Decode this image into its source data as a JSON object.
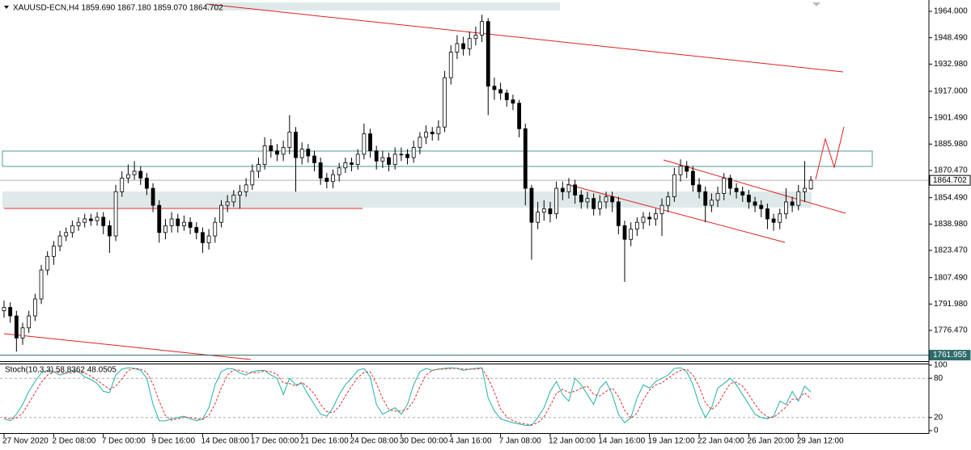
{
  "chart_data": [
    {
      "type": "candlestick",
      "title": "XAUUSD-ECN,H4 1859.690 1867.180 1859.070 1864.702",
      "categories": [
        "27 Nov 2020",
        null,
        null,
        null,
        null,
        null,
        null,
        null,
        "2 Dec 08:00",
        null,
        null,
        null,
        null,
        null,
        null,
        null,
        "7 Dec 00:00",
        null,
        null,
        null,
        null,
        null,
        null,
        null,
        "9 Dec 16:00",
        null,
        null,
        null,
        null,
        null,
        null,
        null,
        "14 Dec 08:00",
        null,
        null,
        null,
        null,
        null,
        null,
        null,
        "17 Dec 00:00",
        null,
        null,
        null,
        null,
        null,
        null,
        null,
        "21 Dec 16:00",
        null,
        null,
        null,
        null,
        null,
        null,
        null,
        "24 Dec 08:00",
        null,
        null,
        null,
        null,
        null,
        null,
        null,
        "30 Dec 00:00",
        null,
        null,
        null,
        null,
        null,
        null,
        null,
        "4 Jan 16:00",
        null,
        null,
        null,
        null,
        null,
        null,
        null,
        "7 Jan 08:00",
        null,
        null,
        null,
        null,
        null,
        null,
        null,
        "12 Jan 00:00",
        null,
        null,
        null,
        null,
        null,
        null,
        null,
        "14 Jan 16:00",
        null,
        null,
        null,
        null,
        null,
        null,
        null,
        "19 Jan 12:00",
        null,
        null,
        null,
        null,
        null,
        null,
        null,
        "22 Jan 04:00",
        null,
        null,
        null,
        null,
        null,
        null,
        null,
        "26 Jan 20:00",
        null,
        null,
        null,
        null,
        null,
        null,
        null,
        "29 Jan 12:00",
        null,
        null
      ],
      "open": [
        1788,
        1790,
        1785,
        1772,
        1778,
        1785,
        1795,
        1812,
        1820,
        1826,
        1832,
        1834,
        1838,
        1840,
        1842,
        1841,
        1843,
        1838,
        1832,
        1858,
        1866,
        1868,
        1870,
        1866,
        1860,
        1850,
        1834,
        1838,
        1842,
        1838,
        1840,
        1837,
        1834,
        1828,
        1832,
        1840,
        1850,
        1852,
        1856,
        1858,
        1862,
        1870,
        1874,
        1885,
        1882,
        1880,
        1884,
        1893,
        1878,
        1883,
        1879,
        1875,
        1866,
        1864,
        1868,
        1872,
        1875,
        1874,
        1880,
        1892,
        1882,
        1876,
        1878,
        1874,
        1880,
        1880,
        1878,
        1884,
        1890,
        1893,
        1892,
        1896,
        1925,
        1940,
        1945,
        1942,
        1948,
        1950,
        1958,
        1920,
        1918,
        1916,
        1912,
        1910,
        1895,
        1860,
        1840,
        1846,
        1848,
        1845,
        1860,
        1858,
        1862,
        1856,
        1852,
        1854,
        1848,
        1852,
        1855,
        1852,
        1838,
        1830,
        1836,
        1840,
        1843,
        1842,
        1845,
        1850,
        1855,
        1868,
        1873,
        1870,
        1862,
        1858,
        1850,
        1853,
        1857,
        1866,
        1860,
        1858,
        1856,
        1852,
        1850,
        1848,
        1842,
        1840,
        1845,
        1852,
        1850,
        1858,
        1859.69
      ],
      "high": [
        1794,
        1793,
        1788,
        1781,
        1788,
        1798,
        1815,
        1823,
        1829,
        1835,
        1837,
        1841,
        1843,
        1845,
        1845,
        1846,
        1846,
        1841,
        1862,
        1870,
        1874,
        1876,
        1873,
        1869,
        1863,
        1853,
        1842,
        1846,
        1845,
        1844,
        1843,
        1840,
        1837,
        1836,
        1843,
        1853,
        1856,
        1859,
        1862,
        1866,
        1874,
        1878,
        1890,
        1889,
        1886,
        1888,
        1903,
        1896,
        1887,
        1886,
        1882,
        1878,
        1869,
        1871,
        1875,
        1878,
        1878,
        1883,
        1898,
        1895,
        1885,
        1882,
        1881,
        1884,
        1884,
        1883,
        1888,
        1893,
        1897,
        1896,
        1900,
        1929,
        1944,
        1950,
        1949,
        1952,
        1955,
        1962,
        1960,
        1925,
        1922,
        1918,
        1915,
        1912,
        1898,
        1862,
        1852,
        1853,
        1852,
        1864,
        1864,
        1866,
        1865,
        1859,
        1858,
        1857,
        1856,
        1858,
        1858,
        1855,
        1841,
        1840,
        1843,
        1846,
        1846,
        1848,
        1854,
        1858,
        1872,
        1877,
        1876,
        1873,
        1866,
        1861,
        1857,
        1861,
        1869,
        1868,
        1863,
        1861,
        1859,
        1855,
        1853,
        1851,
        1845,
        1848,
        1860,
        1855,
        1862,
        1876,
        1867.18
      ],
      "low": [
        1784,
        1781,
        1764,
        1768,
        1775,
        1782,
        1792,
        1809,
        1815,
        1823,
        1829,
        1831,
        1835,
        1837,
        1838,
        1838,
        1833,
        1822,
        1829,
        1855,
        1863,
        1865,
        1862,
        1856,
        1846,
        1828,
        1830,
        1834,
        1834,
        1835,
        1833,
        1830,
        1822,
        1824,
        1828,
        1837,
        1846,
        1849,
        1848,
        1855,
        1859,
        1866,
        1871,
        1878,
        1876,
        1876,
        1880,
        1858,
        1874,
        1875,
        1870,
        1862,
        1860,
        1860,
        1864,
        1869,
        1870,
        1871,
        1877,
        1878,
        1871,
        1872,
        1870,
        1871,
        1876,
        1874,
        1875,
        1880,
        1886,
        1888,
        1888,
        1893,
        1921,
        1936,
        1938,
        1938,
        1944,
        1946,
        1903,
        1912,
        1912,
        1908,
        1906,
        1890,
        1850,
        1818,
        1836,
        1841,
        1840,
        1842,
        1853,
        1854,
        1851,
        1848,
        1848,
        1844,
        1844,
        1848,
        1846,
        1833,
        1805,
        1826,
        1832,
        1836,
        1838,
        1838,
        1832,
        1846,
        1852,
        1864,
        1866,
        1858,
        1854,
        1840,
        1846,
        1849,
        1853,
        1856,
        1854,
        1852,
        1848,
        1846,
        1843,
        1836,
        1835,
        1836,
        1842,
        1846,
        1847,
        1852,
        1859.07
      ],
      "close": [
        1790,
        1785,
        1772,
        1778,
        1785,
        1795,
        1812,
        1820,
        1826,
        1832,
        1834,
        1838,
        1840,
        1842,
        1841,
        1843,
        1838,
        1832,
        1858,
        1866,
        1868,
        1870,
        1866,
        1860,
        1850,
        1834,
        1838,
        1842,
        1838,
        1840,
        1837,
        1834,
        1828,
        1832,
        1840,
        1850,
        1852,
        1856,
        1858,
        1862,
        1870,
        1874,
        1885,
        1882,
        1880,
        1884,
        1893,
        1878,
        1883,
        1879,
        1875,
        1866,
        1864,
        1868,
        1872,
        1875,
        1874,
        1880,
        1892,
        1882,
        1876,
        1878,
        1874,
        1880,
        1880,
        1878,
        1884,
        1890,
        1893,
        1892,
        1896,
        1925,
        1940,
        1945,
        1942,
        1948,
        1950,
        1958,
        1920,
        1918,
        1916,
        1912,
        1910,
        1895,
        1860,
        1840,
        1846,
        1848,
        1845,
        1860,
        1858,
        1862,
        1856,
        1852,
        1854,
        1848,
        1852,
        1855,
        1852,
        1838,
        1830,
        1836,
        1840,
        1843,
        1842,
        1845,
        1850,
        1855,
        1868,
        1873,
        1870,
        1862,
        1858,
        1850,
        1853,
        1857,
        1866,
        1860,
        1858,
        1856,
        1852,
        1850,
        1848,
        1842,
        1840,
        1845,
        1852,
        1850,
        1858,
        1860,
        1864.702
      ],
      "ylim": [
        1758.43,
        1970.65
      ],
      "yticks": [
        {
          "value": 1964.0,
          "label": "1964.000"
        },
        {
          "value": 1948.49,
          "label": "1948.490"
        },
        {
          "value": 1932.98,
          "label": "1932.980"
        },
        {
          "value": 1917.0,
          "label": "1917.000"
        },
        {
          "value": 1901.49,
          "label": "1901.490"
        },
        {
          "value": 1885.98,
          "label": "1885.980"
        },
        {
          "value": 1870.47,
          "label": "1870.470"
        },
        {
          "value": 1854.49,
          "label": "1854.490"
        },
        {
          "value": 1838.98,
          "label": "1838.980"
        },
        {
          "value": 1823.47,
          "label": "1823.470"
        },
        {
          "value": 1807.49,
          "label": "1807.490"
        },
        {
          "value": 1791.98,
          "label": "1791.980"
        },
        {
          "value": 1776.47,
          "label": "1776.470"
        }
      ],
      "markers": [
        {
          "value": 1864.702,
          "label": "1864.702",
          "color": "#b0b0b0"
        },
        {
          "value": 1761.955,
          "label": "1761.955",
          "color": "#2e6b6b"
        }
      ]
    },
    {
      "type": "line",
      "title": "Stoch(10,3,3) 58.8362 48.0505",
      "ylim": [
        0,
        100
      ],
      "yticks": [
        0,
        20,
        80,
        100
      ],
      "series": [
        {
          "color": "#20b2aa",
          "dashed": false,
          "values": [
            18,
            15,
            25,
            40,
            60,
            75,
            88,
            92,
            90,
            85,
            88,
            92,
            90,
            82,
            78,
            72,
            60,
            58,
            85,
            94,
            96,
            95,
            92,
            80,
            40,
            15,
            15,
            18,
            20,
            22,
            18,
            15,
            18,
            35,
            70,
            90,
            95,
            94,
            88,
            85,
            90,
            92,
            92,
            85,
            80,
            55,
            80,
            70,
            72,
            55,
            40,
            25,
            22,
            35,
            55,
            70,
            80,
            92,
            95,
            82,
            40,
            25,
            30,
            35,
            25,
            40,
            70,
            90,
            95,
            92,
            94,
            95,
            96,
            95,
            92,
            94,
            95,
            96,
            50,
            30,
            18,
            15,
            12,
            10,
            8,
            8,
            20,
            35,
            60,
            75,
            55,
            45,
            80,
            70,
            55,
            40,
            65,
            75,
            55,
            25,
            12,
            20,
            50,
            70,
            65,
            75,
            80,
            85,
            95,
            96,
            90,
            70,
            40,
            20,
            35,
            65,
            72,
            80,
            70,
            55,
            40,
            25,
            20,
            18,
            22,
            45,
            40,
            60,
            45,
            68,
            58.8362
          ]
        },
        {
          "color": "#e0312d",
          "dashed": true,
          "values": [
            20,
            18,
            19,
            27,
            42,
            58,
            74,
            85,
            90,
            89,
            88,
            88,
            90,
            88,
            83,
            77,
            70,
            63,
            68,
            79,
            92,
            95,
            94,
            89,
            71,
            45,
            23,
            16,
            18,
            20,
            20,
            18,
            17,
            23,
            41,
            65,
            85,
            93,
            92,
            89,
            88,
            89,
            91,
            90,
            86,
            73,
            72,
            68,
            74,
            66,
            56,
            40,
            29,
            27,
            37,
            53,
            68,
            81,
            89,
            90,
            72,
            49,
            32,
            30,
            30,
            33,
            45,
            67,
            85,
            92,
            94,
            94,
            95,
            95,
            94,
            94,
            94,
            95,
            80,
            59,
            33,
            21,
            15,
            12,
            10,
            9,
            12,
            21,
            38,
            57,
            63,
            58,
            60,
            65,
            68,
            55,
            53,
            60,
            65,
            52,
            31,
            19,
            27,
            47,
            62,
            70,
            73,
            80,
            87,
            92,
            94,
            85,
            67,
            43,
            32,
            40,
            57,
            72,
            74,
            68,
            55,
            40,
            28,
            21,
            20,
            28,
            36,
            48,
            48,
            58,
            48.0505
          ]
        }
      ]
    }
  ]
}
